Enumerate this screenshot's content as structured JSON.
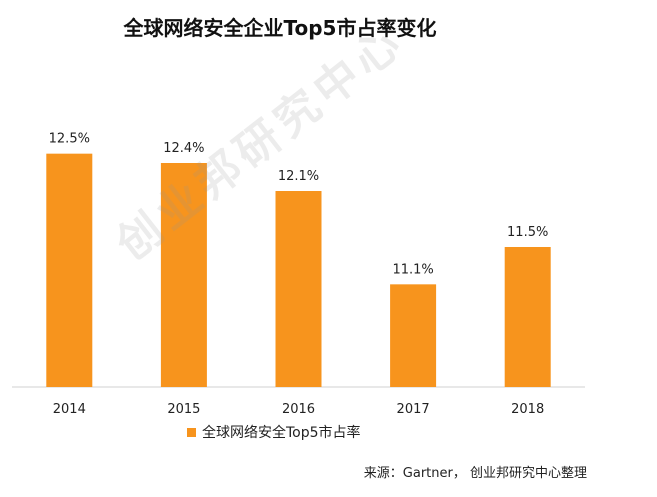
{
  "chart_data": {
    "type": "bar",
    "title": "全球网络安全企业Top5市占率变化",
    "categories": [
      "2014",
      "2015",
      "2016",
      "2017",
      "2018"
    ],
    "series": [
      {
        "name": "全球网络安全Top5市占率",
        "values": [
          12.5,
          12.4,
          12.1,
          11.1,
          11.5
        ]
      }
    ],
    "data_labels": [
      "12.5%",
      "12.4%",
      "12.1%",
      "11.1%",
      "11.5%"
    ],
    "ylim": [
      10.0,
      12.7
    ],
    "grid": false,
    "legend_position": "bottom",
    "bar_color": "#f7941d"
  },
  "source_text": "来源：Gartner， 创业邦研究中心整理",
  "watermark_text": "创业邦研究中心"
}
